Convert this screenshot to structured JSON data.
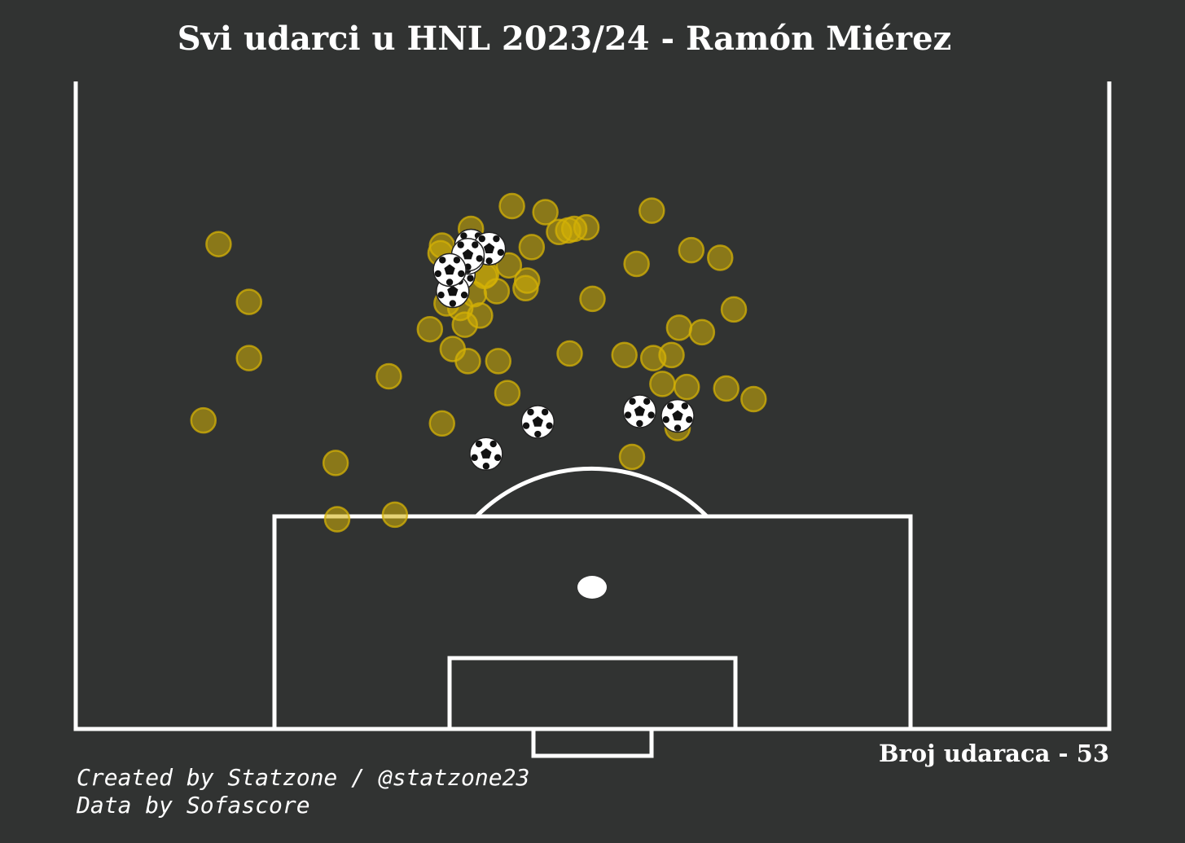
{
  "title": "Svi udarci u HNL 2023/24 - Ramón Miérez",
  "shot_count_text": "Broj udaraca - 53",
  "credits": {
    "line1": "Created by Statzone / @statzone23",
    "line2": "Data by Sofascore"
  },
  "colors": {
    "background": "#313332",
    "lines": "#ffffff",
    "shot": "#d4b106",
    "goal_marker": "#ffffff"
  },
  "chart_data": {
    "type": "scatter",
    "title": "Svi udarci u HNL 2023/24 - Ramón Miérez",
    "xlabel": "",
    "ylabel": "",
    "total_shots": 53,
    "series": [
      {
        "name": "Shot",
        "points": [
          {
            "x": 34.0,
            "y": 28.3
          },
          {
            "x": 32.4,
            "y": 32.8
          },
          {
            "x": 30.0,
            "y": 31.7
          },
          {
            "x": 20.6,
            "y": 23.2
          },
          {
            "x": 8.4,
            "y": 20.3
          },
          {
            "x": 9.4,
            "y": 31.9
          },
          {
            "x": 24.0,
            "y": 31.3
          },
          {
            "x": 24.4,
            "y": 28.0
          },
          {
            "x": 17.1,
            "y": 17.5
          },
          {
            "x": 11.4,
            "y": 28.1
          },
          {
            "x": 11.4,
            "y": 24.4
          },
          {
            "x": 24.1,
            "y": 20.1
          },
          {
            "x": 17.2,
            "y": 13.8
          },
          {
            "x": 21.0,
            "y": 14.1
          },
          {
            "x": 36.6,
            "y": 17.9
          },
          {
            "x": 36.9,
            "y": 30.6
          },
          {
            "x": 43.3,
            "y": 27.6
          },
          {
            "x": 42.4,
            "y": 31.0
          },
          {
            "x": 40.5,
            "y": 31.5
          },
          {
            "x": 39.7,
            "y": 26.4
          },
          {
            "x": 37.9,
            "y": 34.1
          },
          {
            "x": 33.6,
            "y": 33.0
          },
          {
            "x": 31.8,
            "y": 32.7
          },
          {
            "x": 26.0,
            "y": 32.9
          },
          {
            "x": 24.1,
            "y": 31.8
          },
          {
            "x": 32.8,
            "y": 32.9
          },
          {
            "x": 30.9,
            "y": 34.0
          },
          {
            "x": 28.7,
            "y": 34.4
          },
          {
            "x": 29.6,
            "y": 29.0
          },
          {
            "x": 27.7,
            "y": 28.8
          },
          {
            "x": 28.5,
            "y": 30.5
          },
          {
            "x": 27.0,
            "y": 29.9
          },
          {
            "x": 26.9,
            "y": 29.8
          },
          {
            "x": 26.2,
            "y": 28.6
          },
          {
            "x": 26.6,
            "y": 27.2
          },
          {
            "x": 25.3,
            "y": 27.7
          },
          {
            "x": 25.6,
            "y": 26.6
          },
          {
            "x": 23.3,
            "y": 26.3
          },
          {
            "x": 24.8,
            "y": 25.0
          },
          {
            "x": 25.8,
            "y": 24.2
          },
          {
            "x": 27.8,
            "y": 24.2
          },
          {
            "x": 32.5,
            "y": 24.7
          },
          {
            "x": 36.1,
            "y": 24.6
          },
          {
            "x": 39.2,
            "y": 24.6
          },
          {
            "x": 41.2,
            "y": 26.1
          },
          {
            "x": 38.6,
            "y": 22.7
          },
          {
            "x": 38.0,
            "y": 24.4
          },
          {
            "x": 40.2,
            "y": 22.5
          },
          {
            "x": 42.8,
            "y": 22.4
          },
          {
            "x": 44.6,
            "y": 21.7
          },
          {
            "x": 39.6,
            "y": 19.8
          },
          {
            "x": 28.4,
            "y": 22.1
          },
          {
            "x": 29.7,
            "y": 29.5
          }
        ]
      },
      {
        "name": "Goal",
        "points": [
          {
            "x": 27.0,
            "y": 18.1
          },
          {
            "x": 30.4,
            "y": 20.2
          },
          {
            "x": 25.2,
            "y": 29.9
          },
          {
            "x": 24.8,
            "y": 28.8
          },
          {
            "x": 26.0,
            "y": 31.8
          },
          {
            "x": 27.2,
            "y": 31.6
          },
          {
            "x": 25.8,
            "y": 31.0
          },
          {
            "x": 25.8,
            "y": 31.2
          },
          {
            "x": 24.6,
            "y": 30.2
          },
          {
            "x": 39.6,
            "y": 20.6
          },
          {
            "x": 37.1,
            "y": 20.9
          }
        ]
      }
    ]
  }
}
